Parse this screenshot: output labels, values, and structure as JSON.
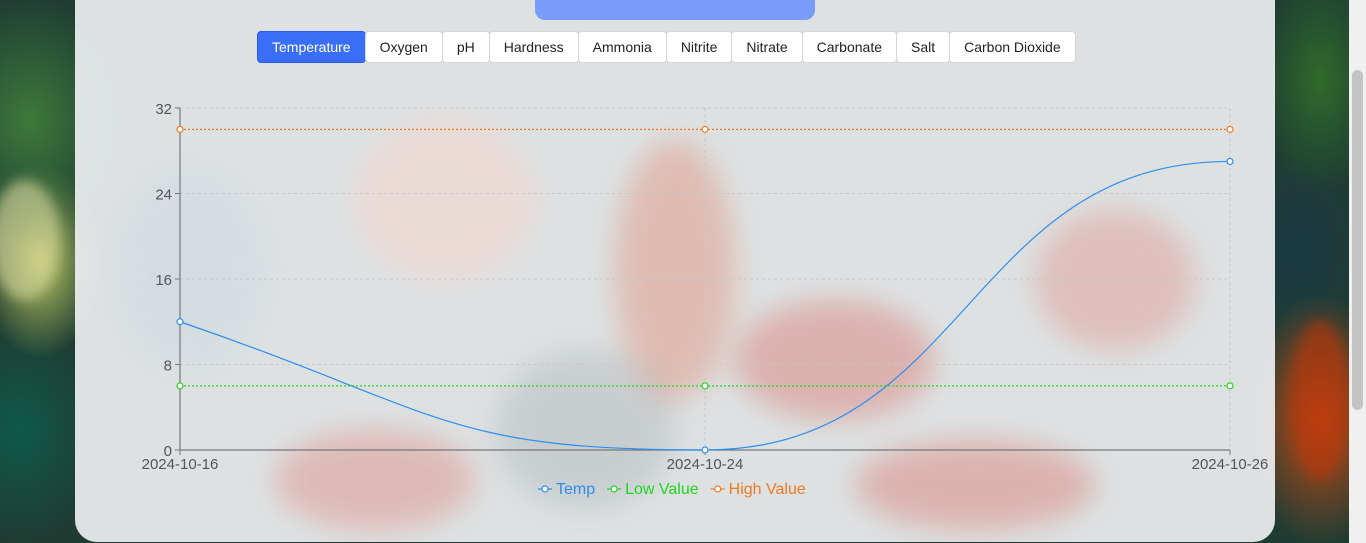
{
  "tabs": [
    {
      "label": "Temperature",
      "active": true
    },
    {
      "label": "Oxygen",
      "active": false
    },
    {
      "label": "pH",
      "active": false
    },
    {
      "label": "Hardness",
      "active": false
    },
    {
      "label": "Ammonia",
      "active": false
    },
    {
      "label": "Nitrite",
      "active": false
    },
    {
      "label": "Nitrate",
      "active": false
    },
    {
      "label": "Carbonate",
      "active": false
    },
    {
      "label": "Salt",
      "active": false
    },
    {
      "label": "Carbon Dioxide",
      "active": false
    }
  ],
  "colors": {
    "accent": "#3b6ef6",
    "header_bar": "#7a9cf9",
    "temp": "#2b8ef0",
    "low": "#22d422",
    "high": "#f07a22"
  },
  "chart_data": {
    "type": "line",
    "title": "",
    "xlabel": "",
    "ylabel": "",
    "x": [
      "2024-10-16",
      "2024-10-24",
      "2024-10-26"
    ],
    "ylim": [
      0,
      32
    ],
    "yticks": [
      0,
      8,
      16,
      24,
      32
    ],
    "grid": true,
    "legend_position": "bottom",
    "series": [
      {
        "name": "Temp",
        "values": [
          12,
          0,
          27
        ],
        "color": "#2b8ef0",
        "style": "solid",
        "smooth": true
      },
      {
        "name": "Low Value",
        "values": [
          6,
          6,
          6
        ],
        "color": "#22d422",
        "style": "dotted"
      },
      {
        "name": "High Value",
        "values": [
          30,
          30,
          30
        ],
        "color": "#f07a22",
        "style": "dotted"
      }
    ]
  }
}
